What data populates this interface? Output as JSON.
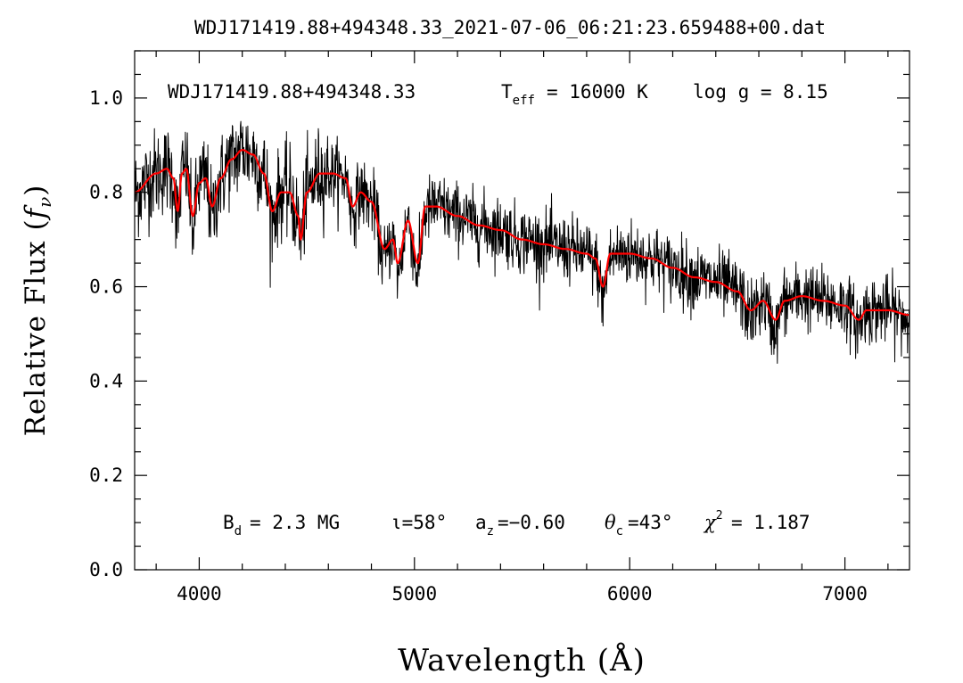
{
  "chart_data": {
    "type": "line",
    "title": "WDJ171419.88+494348.33_2021-07-06_06:21:23.659488+00.dat",
    "xlabel": "Wavelength (Å)",
    "ylabel_main": "Relative Flux (",
    "ylabel_var": "f",
    "ylabel_sub": "ν",
    "ylabel_close": ")",
    "xlim": [
      3700,
      7300
    ],
    "ylim": [
      0.0,
      1.1
    ],
    "xticks_major": [
      4000,
      5000,
      6000,
      7000
    ],
    "xtick_labels": [
      "4000",
      "5000",
      "6000",
      "7000"
    ],
    "yticks_major": [
      0.0,
      0.2,
      0.4,
      0.6,
      0.8,
      1.0
    ],
    "ytick_labels": [
      "0.0",
      "0.2",
      "0.4",
      "0.6",
      "0.8",
      "1.0"
    ],
    "header": {
      "object": "WDJ171419.88+494348.33",
      "teff_label": "T",
      "teff_sub": "eff",
      "teff_value": "= 16000 K",
      "logg": "log g = 8.15"
    },
    "fit_params": {
      "bd_label": "B",
      "bd_sub": "d",
      "bd_value": "=  2.3 MG",
      "incl": "ι=58°",
      "az_label": "a",
      "az_sub": "z",
      "az_value": "=−0.60",
      "theta_label": "θ",
      "theta_sub": "c",
      "theta_value": "=43°",
      "chi_label": "χ",
      "chi_sup": "2",
      "chi_value": "=  1.187"
    },
    "series": [
      {
        "color": "#000000",
        "style": "noisy observed spectrum",
        "noise_sigma": 0.035,
        "x": [
          3700,
          3800,
          3850,
          3880,
          3900,
          3920,
          3940,
          3970,
          4000,
          4030,
          4060,
          4100,
          4150,
          4200,
          4250,
          4300,
          4340,
          4380,
          4420,
          4460,
          4471,
          4500,
          4560,
          4620,
          4680,
          4713,
          4750,
          4800,
          4861,
          4900,
          4922,
          4970,
          5016,
          5050,
          5100,
          5200,
          5300,
          5400,
          5500,
          5600,
          5700,
          5800,
          5840,
          5876,
          5910,
          5950,
          6000,
          6100,
          6200,
          6300,
          6400,
          6500,
          6563,
          6620,
          6678,
          6720,
          6800,
          6900,
          7000,
          7065,
          7100,
          7200,
          7300
        ],
        "y": [
          0.8,
          0.84,
          0.85,
          0.83,
          0.74,
          0.84,
          0.85,
          0.73,
          0.82,
          0.83,
          0.75,
          0.83,
          0.87,
          0.89,
          0.88,
          0.84,
          0.75,
          0.8,
          0.8,
          0.74,
          0.7,
          0.8,
          0.84,
          0.84,
          0.83,
          0.76,
          0.8,
          0.78,
          0.66,
          0.7,
          0.63,
          0.74,
          0.63,
          0.76,
          0.77,
          0.75,
          0.73,
          0.72,
          0.7,
          0.69,
          0.68,
          0.67,
          0.65,
          0.58,
          0.66,
          0.67,
          0.67,
          0.66,
          0.64,
          0.62,
          0.61,
          0.59,
          0.54,
          0.57,
          0.51,
          0.57,
          0.58,
          0.57,
          0.56,
          0.52,
          0.55,
          0.55,
          0.53
        ]
      },
      {
        "color": "#ff0000",
        "style": "smooth model fit",
        "x": [
          3700,
          3800,
          3850,
          3880,
          3900,
          3920,
          3940,
          3970,
          4000,
          4030,
          4060,
          4100,
          4150,
          4200,
          4250,
          4300,
          4340,
          4380,
          4420,
          4460,
          4471,
          4500,
          4560,
          4620,
          4680,
          4713,
          4750,
          4800,
          4861,
          4900,
          4922,
          4970,
          5016,
          5050,
          5100,
          5200,
          5300,
          5400,
          5500,
          5600,
          5700,
          5800,
          5840,
          5876,
          5910,
          5950,
          6000,
          6100,
          6200,
          6300,
          6400,
          6500,
          6563,
          6620,
          6678,
          6720,
          6800,
          6900,
          7000,
          7065,
          7100,
          7200,
          7300
        ],
        "y": [
          0.8,
          0.84,
          0.85,
          0.83,
          0.76,
          0.84,
          0.85,
          0.75,
          0.82,
          0.83,
          0.77,
          0.83,
          0.87,
          0.89,
          0.88,
          0.84,
          0.76,
          0.8,
          0.8,
          0.75,
          0.7,
          0.8,
          0.84,
          0.84,
          0.83,
          0.77,
          0.8,
          0.78,
          0.68,
          0.7,
          0.65,
          0.74,
          0.65,
          0.77,
          0.77,
          0.75,
          0.73,
          0.72,
          0.7,
          0.69,
          0.68,
          0.67,
          0.66,
          0.6,
          0.67,
          0.67,
          0.67,
          0.66,
          0.64,
          0.62,
          0.61,
          0.59,
          0.55,
          0.57,
          0.53,
          0.57,
          0.58,
          0.57,
          0.56,
          0.53,
          0.55,
          0.55,
          0.54
        ]
      }
    ]
  }
}
